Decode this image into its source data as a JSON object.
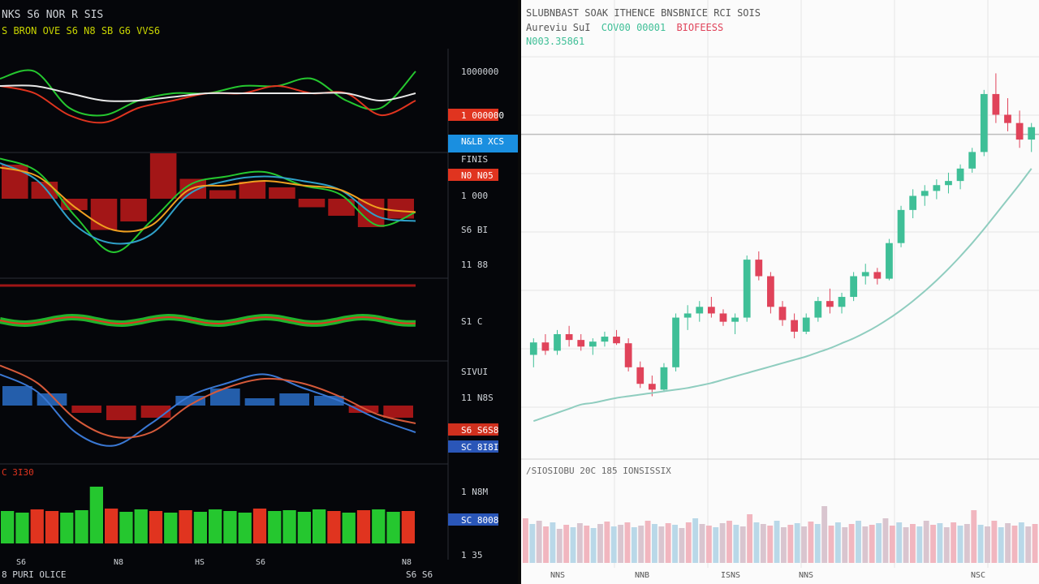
{
  "left_panel": {
    "header": {
      "title": "NKS S6 NOR R SIS",
      "legend": "S BRON OVE S6 N8 SB G6 VVS6"
    },
    "bottom_labels": {
      "left": "8 PURI OLICE",
      "right": "S6 S6",
      "x_ticks": [
        "S6",
        "N8",
        "HS",
        "S6",
        "N8"
      ]
    },
    "price_axis": [
      {
        "text": "1000000",
        "tag": "none"
      },
      {
        "text": "1 000000",
        "tag": "orange"
      },
      {
        "text": "N&LB XCS",
        "tag": "blue"
      },
      {
        "text": "FINIS",
        "tag": "none"
      },
      {
        "text": "N0 N05",
        "tag": "orange"
      },
      {
        "text": "1 000",
        "tag": "none"
      },
      {
        "text": "S6 BI",
        "tag": "none"
      },
      {
        "text": "11 88",
        "tag": "none"
      },
      {
        "text": "S1 C",
        "tag": "none"
      },
      {
        "text": "SIVUI",
        "tag": "none"
      },
      {
        "text": "11 N8S",
        "tag": "none"
      },
      {
        "text": "S6 S6S8",
        "tag": "red"
      },
      {
        "text": "SC 8I8I",
        "tag": "blue"
      },
      {
        "text": "1 N8M",
        "tag": "none"
      },
      {
        "text": "SC 8008",
        "tag": "blue"
      },
      {
        "text": "1 35",
        "tag": "none"
      }
    ],
    "volume_label": "C 3I30",
    "colors": {
      "green": "#25c72f",
      "red": "#e0341f",
      "orange": "#f0a020",
      "white": "#e8e8e8",
      "blue": "#3a78d4",
      "axis_blue": "#1a8fe0"
    }
  },
  "right_panel": {
    "header": {
      "line1": "SLUBNBAST SOAK ITHENCE BNSBNICE RCI SOIS",
      "line2_a": "Aureviu SuI",
      "line2_b": "COV00 00001",
      "line2_c": "BIOFEESS",
      "line3": "N003.35861"
    },
    "volume_label": "/SIOSIOBU 20C 185 IONSISSIX",
    "x_ticks": [
      "NNS",
      "NNB",
      "ISNS",
      "NNS",
      "NSC"
    ],
    "colors": {
      "up": "#3fbf97",
      "down": "#e0435a",
      "ma": "#8fcdbf",
      "grid": "#e6e6e6",
      "ref_line": "#bdbdbd"
    }
  },
  "chart_data": [
    {
      "type": "line",
      "panel": "left-main-oscillator",
      "x": [
        0,
        1,
        2,
        3,
        4,
        5,
        6,
        7,
        8,
        9,
        10,
        11,
        12
      ],
      "series": [
        {
          "values": [
            0.7,
            0.8,
            0.3,
            0.2,
            0.4,
            0.5,
            0.5,
            0.6,
            0.6,
            0.7,
            0.4,
            0.3,
            0.8
          ]
        },
        {
          "values": [
            0.6,
            0.5,
            0.2,
            0.1,
            0.3,
            0.4,
            0.5,
            0.5,
            0.6,
            0.5,
            0.5,
            0.2,
            0.4
          ]
        },
        {
          "values": [
            0.6,
            0.6,
            0.5,
            0.4,
            0.4,
            0.45,
            0.5,
            0.5,
            0.5,
            0.5,
            0.5,
            0.4,
            0.5
          ]
        }
      ]
    },
    {
      "type": "bar",
      "panel": "left-macd-1",
      "values": [
        1.2,
        0.6,
        -0.4,
        -1.1,
        -0.8,
        1.6,
        0.7,
        0.3,
        0.6,
        0.4,
        -0.3,
        -0.6,
        -1.0,
        -0.7
      ],
      "series": [
        {
          "values": [
            0.9,
            0.6,
            -0.4,
            -1.2,
            -0.5,
            0.3,
            0.5,
            0.6,
            0.3,
            0.1,
            -0.6,
            -0.3
          ]
        },
        {
          "values": [
            0.8,
            0.4,
            -0.6,
            -1.0,
            -0.8,
            0.1,
            0.4,
            0.5,
            0.4,
            0.2,
            -0.4,
            -0.5
          ]
        },
        {
          "values": [
            0.7,
            0.5,
            -0.2,
            -0.7,
            -0.6,
            0.2,
            0.3,
            0.4,
            0.3,
            0.2,
            -0.2,
            -0.3
          ]
        }
      ]
    },
    {
      "type": "bar",
      "panel": "left-macd-2",
      "values": [
        0.8,
        0.5,
        -0.3,
        -0.6,
        -0.5,
        0.4,
        0.7,
        0.3,
        0.5,
        0.4,
        -0.3,
        -0.5
      ],
      "series": [
        {
          "values": [
            0.7,
            0.3,
            -0.6,
            -0.9,
            -0.4,
            0.2,
            0.5,
            0.7,
            0.4,
            0.1,
            -0.3,
            -0.6
          ]
        },
        {
          "values": [
            0.9,
            0.5,
            -0.3,
            -0.7,
            -0.6,
            0.0,
            0.4,
            0.6,
            0.5,
            0.2,
            -0.2,
            -0.4
          ]
        }
      ]
    },
    {
      "type": "bar",
      "panel": "left-volume",
      "values": [
        40,
        38,
        42,
        40,
        38,
        41,
        70,
        43,
        39,
        42,
        40,
        38,
        41,
        39,
        42,
        40,
        38,
        43,
        40,
        41,
        39,
        42,
        40,
        38,
        41,
        42,
        39,
        40
      ]
    },
    {
      "type": "candlestick",
      "panel": "right-price",
      "ohlc": [
        [
          420,
          440,
          405,
          435
        ],
        [
          435,
          445,
          420,
          425
        ],
        [
          425,
          450,
          420,
          445
        ],
        [
          445,
          455,
          430,
          438
        ],
        [
          438,
          445,
          425,
          430
        ],
        [
          430,
          440,
          420,
          436
        ],
        [
          436,
          448,
          430,
          442
        ],
        [
          442,
          450,
          432,
          434
        ],
        [
          434,
          440,
          400,
          405
        ],
        [
          405,
          412,
          380,
          385
        ],
        [
          385,
          395,
          370,
          378
        ],
        [
          378,
          410,
          375,
          405
        ],
        [
          405,
          470,
          400,
          465
        ],
        [
          465,
          480,
          450,
          470
        ],
        [
          470,
          485,
          460,
          478
        ],
        [
          478,
          490,
          465,
          470
        ],
        [
          470,
          475,
          455,
          460
        ],
        [
          460,
          470,
          445,
          465
        ],
        [
          465,
          540,
          460,
          535
        ],
        [
          535,
          545,
          510,
          515
        ],
        [
          515,
          520,
          470,
          478
        ],
        [
          478,
          485,
          455,
          462
        ],
        [
          462,
          470,
          440,
          448
        ],
        [
          448,
          470,
          445,
          465
        ],
        [
          465,
          490,
          460,
          485
        ],
        [
          485,
          500,
          470,
          478
        ],
        [
          478,
          495,
          470,
          490
        ],
        [
          490,
          520,
          485,
          515
        ],
        [
          515,
          530,
          505,
          520
        ],
        [
          520,
          525,
          505,
          512
        ],
        [
          512,
          560,
          510,
          555
        ],
        [
          555,
          600,
          550,
          595
        ],
        [
          595,
          620,
          585,
          612
        ],
        [
          612,
          625,
          600,
          618
        ],
        [
          618,
          632,
          608,
          625
        ],
        [
          625,
          640,
          615,
          630
        ],
        [
          630,
          650,
          620,
          645
        ],
        [
          645,
          670,
          640,
          665
        ],
        [
          665,
          740,
          660,
          735
        ],
        [
          735,
          760,
          700,
          710
        ],
        [
          710,
          730,
          690,
          700
        ],
        [
          700,
          715,
          670,
          680
        ],
        [
          680,
          700,
          665,
          695
        ]
      ],
      "ma": [
        340,
        345,
        350,
        355,
        360,
        362,
        365,
        368,
        370,
        372,
        374,
        376,
        378,
        380,
        383,
        386,
        390,
        394,
        398,
        402,
        406,
        410,
        414,
        418,
        423,
        428,
        434,
        440,
        447,
        455,
        464,
        474,
        485,
        497,
        510,
        524,
        539,
        555,
        572,
        590,
        608,
        626,
        645
      ],
      "ref_level": 700
    },
    {
      "type": "bar",
      "panel": "right-volume",
      "values": [
        55,
        48,
        52,
        45,
        50,
        42,
        47,
        44,
        49,
        46,
        43,
        48,
        51,
        45,
        47,
        50,
        44,
        46,
        52,
        48,
        45,
        49,
        47,
        43,
        50,
        55,
        48,
        46,
        44,
        49,
        52,
        47,
        45,
        60,
        50,
        48,
        46,
        52,
        44,
        47,
        49,
        45,
        51,
        48,
        70,
        46,
        50,
        44,
        48,
        52,
        45,
        47,
        49,
        55,
        46,
        50,
        44,
        48,
        45,
        52,
        47,
        49,
        44,
        50,
        46,
        48,
        65,
        47,
        45,
        52,
        44,
        49,
        46,
        50,
        45,
        48
      ]
    }
  ]
}
